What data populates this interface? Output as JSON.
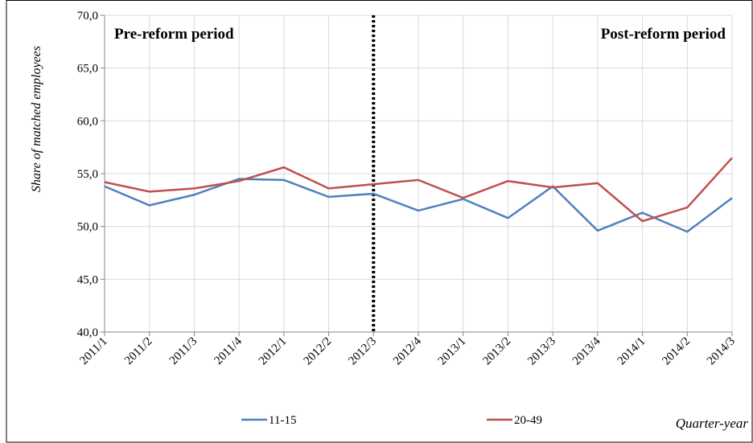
{
  "chart_data": {
    "type": "line",
    "y_label": "Share of matched employees",
    "x_label": "Quarter-year",
    "annotations": [
      {
        "text": "Pre-reform period",
        "position": "left"
      },
      {
        "text": "Post-reform period",
        "position": "right"
      }
    ],
    "divider": "2012/3",
    "categories": [
      "2011/1",
      "2011/2",
      "2011/3",
      "2011/4",
      "2012/1",
      "2012/2",
      "2012/3",
      "2012/4",
      "2013/1",
      "2013/2",
      "2013/3",
      "2013/4",
      "2014/1",
      "2014/2",
      "2014/3"
    ],
    "series": [
      {
        "name": "11-15",
        "color": "#4f81bd",
        "values": [
          53.8,
          52.0,
          53.0,
          54.5,
          54.4,
          52.8,
          53.1,
          51.5,
          52.6,
          50.8,
          53.8,
          49.6,
          51.3,
          49.5,
          52.7
        ]
      },
      {
        "name": "20-49",
        "color": "#c0504d",
        "values": [
          54.2,
          53.3,
          53.6,
          54.3,
          55.6,
          53.6,
          54.0,
          54.4,
          52.7,
          54.3,
          53.7,
          54.1,
          50.5,
          51.8,
          56.5
        ]
      }
    ],
    "ylim": [
      40,
      70
    ],
    "yticks": [
      {
        "value": 40,
        "label": "40,0"
      },
      {
        "value": 45,
        "label": "45,0"
      },
      {
        "value": 50,
        "label": "50,0"
      },
      {
        "value": 55,
        "label": "55,0"
      },
      {
        "value": 60,
        "label": "60,0"
      },
      {
        "value": 65,
        "label": "65,0"
      },
      {
        "value": 70,
        "label": "70,0"
      }
    ],
    "grid": true
  }
}
